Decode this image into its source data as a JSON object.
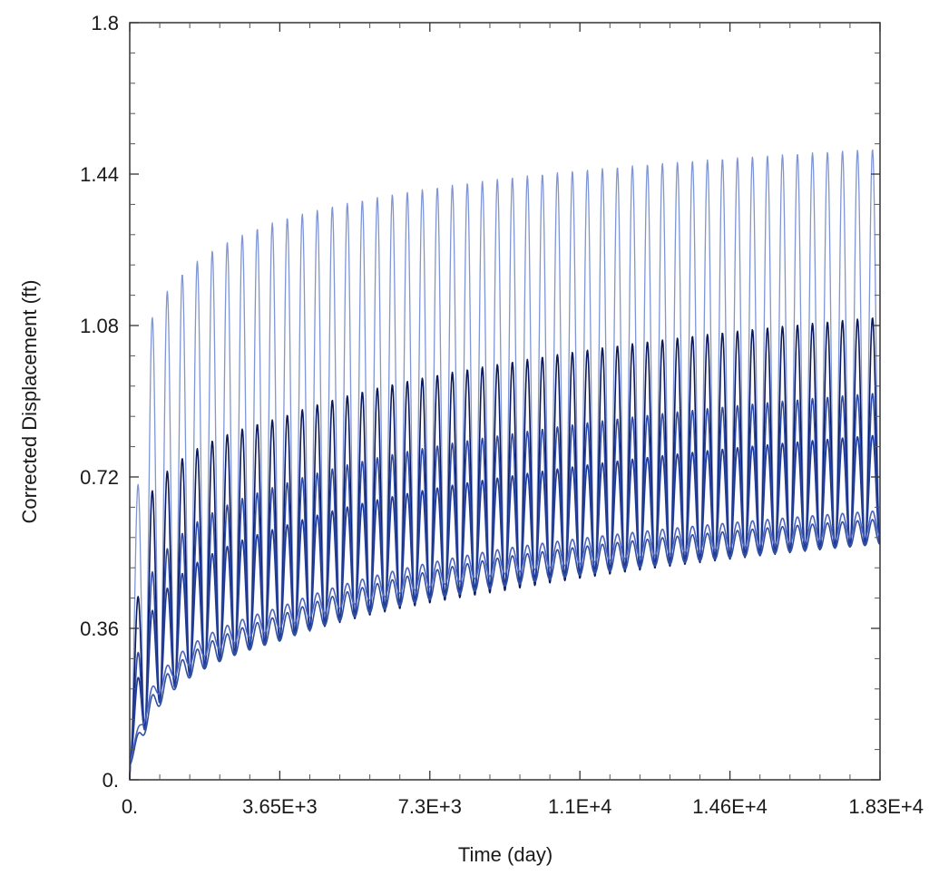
{
  "chart_data": {
    "type": "line",
    "title": "",
    "xlabel": "Time (day)",
    "ylabel": "Corrected Displacement (ft)",
    "xlim": [
      0,
      18250
    ],
    "ylim": [
      0,
      1.8
    ],
    "x_tick_values": [
      0,
      3650,
      7300,
      10950,
      14600,
      18250
    ],
    "x_tick_labels": [
      "0.",
      "3.65E+3",
      "7.3E+3",
      "1.1E+4",
      "1.46E+4",
      "1.83E+4"
    ],
    "y_tick_values": [
      0,
      0.36,
      0.72,
      1.08,
      1.44,
      1.8
    ],
    "y_tick_labels": [
      "0.",
      "0.36",
      "0.72",
      "1.08",
      "1.44",
      "1.8"
    ],
    "grid": false,
    "legend": "none",
    "cycle_period_days": 365,
    "cycles": 50,
    "series": [
      {
        "color": "#7f95d6",
        "peaks": {
          "x": [
            365,
            3650,
            9125,
            18250
          ],
          "y": [
            1.05,
            1.33,
            1.43,
            1.5
          ]
        },
        "troughs": {
          "x": [
            365,
            3650,
            9125,
            18250
          ],
          "y": [
            0.13,
            0.34,
            0.46,
            0.57
          ]
        }
      },
      {
        "color": "#0c1a5c",
        "peaks": {
          "x": [
            365,
            3650,
            9125,
            18250
          ],
          "y": [
            0.65,
            0.86,
            0.99,
            1.1
          ]
        },
        "troughs": {
          "x": [
            365,
            3650,
            9125,
            18250
          ],
          "y": [
            0.12,
            0.33,
            0.45,
            0.56
          ]
        }
      },
      {
        "color": "#2a49a8",
        "peaks": {
          "x": [
            365,
            3650,
            9125,
            18250
          ],
          "y": [
            0.45,
            0.7,
            0.82,
            0.92
          ]
        },
        "troughs": {
          "x": [
            365,
            3650,
            9125,
            18250
          ],
          "y": [
            0.12,
            0.33,
            0.46,
            0.56
          ]
        }
      },
      {
        "color": "#1f3a96",
        "peaks": {
          "x": [
            365,
            3650,
            9125,
            18250
          ],
          "y": [
            0.36,
            0.6,
            0.72,
            0.82
          ]
        },
        "troughs": {
          "x": [
            365,
            3650,
            9125,
            18250
          ],
          "y": [
            0.13,
            0.34,
            0.47,
            0.57
          ]
        }
      },
      {
        "color": "#4a64c0",
        "peaks": {
          "x": [
            365,
            3650,
            9125,
            18250
          ],
          "y": [
            0.18,
            0.41,
            0.55,
            0.64
          ]
        },
        "troughs": {
          "x": [
            365,
            3650,
            9125,
            18250
          ],
          "y": [
            0.14,
            0.36,
            0.49,
            0.58
          ]
        }
      },
      {
        "color": "#324f9e",
        "peaks": {
          "x": [
            365,
            3650,
            9125,
            18250
          ],
          "y": [
            0.16,
            0.39,
            0.53,
            0.62
          ]
        },
        "troughs": {
          "x": [
            365,
            3650,
            9125,
            18250
          ],
          "y": [
            0.11,
            0.33,
            0.46,
            0.56
          ]
        }
      }
    ]
  }
}
